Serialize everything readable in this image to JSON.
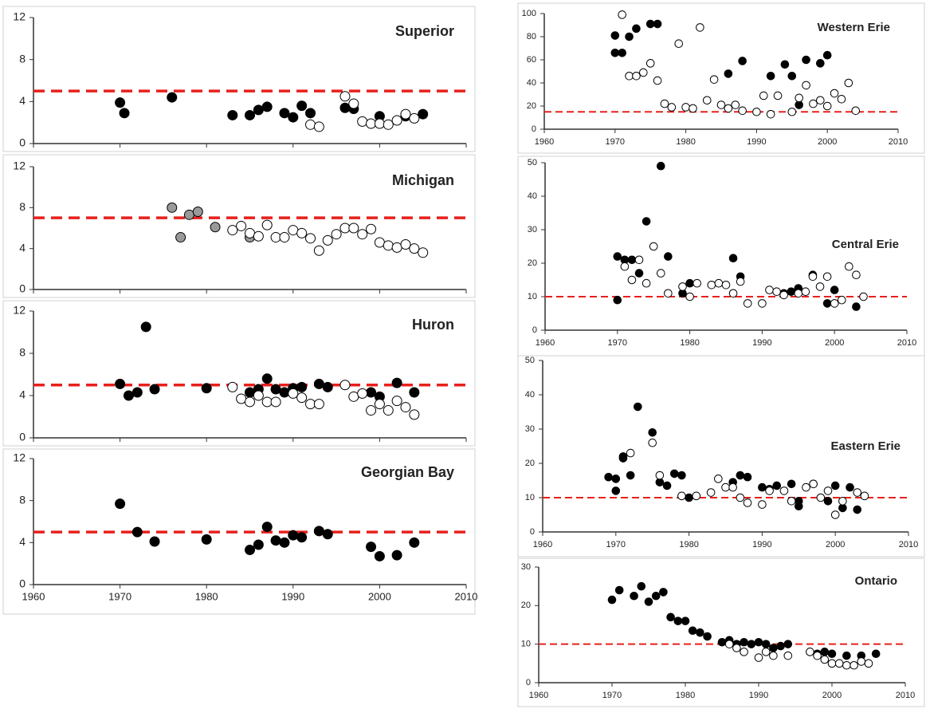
{
  "chart_data": [
    {
      "type": "scatter",
      "title": "Superior",
      "xlim": [
        1960,
        2010
      ],
      "ylim": [
        0,
        12
      ],
      "yticks": [
        0,
        4,
        8,
        12
      ],
      "xticks": [
        1960,
        1970,
        1980,
        1990,
        2000,
        2010
      ],
      "reference_line": {
        "value": 5,
        "color": "#e8201c"
      },
      "series": [
        {
          "color": "#000000",
          "x": [
            1970,
            1970.5,
            1976,
            1983,
            1985,
            1986,
            1987,
            1989,
            1990,
            1991,
            1992,
            1996,
            1997,
            2000,
            2003,
            2005
          ],
          "values": [
            3.9,
            2.9,
            4.4,
            2.7,
            2.7,
            3.2,
            3.5,
            2.9,
            2.5,
            3.6,
            2.9,
            3.4,
            3.3,
            2.6,
            2.6,
            2.8
          ]
        },
        {
          "color": "#ffffff",
          "x": [
            1992,
            1993,
            1996,
            1997,
            1998,
            1999,
            2000,
            2001,
            2002,
            2003,
            2004
          ],
          "values": [
            1.8,
            1.6,
            4.5,
            3.8,
            2.1,
            1.9,
            1.9,
            1.8,
            2.2,
            2.8,
            2.4
          ]
        }
      ]
    },
    {
      "type": "scatter",
      "title": "Michigan",
      "xlim": [
        1960,
        2010
      ],
      "ylim": [
        0,
        12
      ],
      "yticks": [
        0,
        4,
        8,
        12
      ],
      "xticks": [
        1960,
        1970,
        1980,
        1990,
        2000,
        2010
      ],
      "reference_line": {
        "value": 7,
        "color": "#e8201c"
      },
      "series": [
        {
          "color": "#999999",
          "x": [
            1976,
            1977,
            1978,
            1979,
            1981,
            1985
          ],
          "values": [
            8,
            5.1,
            7.3,
            7.6,
            6.1,
            5.1
          ]
        },
        {
          "color": "#ffffff",
          "x": [
            1983,
            1984,
            1985,
            1986,
            1987,
            1988,
            1989,
            1990,
            1991,
            1992,
            1993,
            1994,
            1995,
            1996,
            1997,
            1998,
            1999,
            2000,
            2001,
            2002,
            2003,
            2004,
            2005
          ],
          "values": [
            5.8,
            6.2,
            5.5,
            5.2,
            6.3,
            5.1,
            5.1,
            5.8,
            5.5,
            5.0,
            3.8,
            4.8,
            5.4,
            6.0,
            6.0,
            5.4,
            5.9,
            4.6,
            4.3,
            4.1,
            4.4,
            4.0,
            3.6
          ]
        }
      ]
    },
    {
      "type": "scatter",
      "title": "Huron",
      "xlim": [
        1960,
        2010
      ],
      "ylim": [
        0,
        12
      ],
      "yticks": [
        0,
        4,
        8,
        12
      ],
      "xticks": [
        1960,
        1970,
        1980,
        1990,
        2000,
        2010
      ],
      "reference_line": {
        "value": 5,
        "color": "#e8201c"
      },
      "series": [
        {
          "color": "#000000",
          "x": [
            1970,
            1971,
            1972,
            1973,
            1974,
            1980,
            1985,
            1986,
            1987,
            1988,
            1989,
            1990,
            1991,
            1993,
            1994,
            1999,
            2000,
            2002,
            2004
          ],
          "values": [
            5.1,
            4,
            4.3,
            10.5,
            4.6,
            4.7,
            4.3,
            4.6,
            5.6,
            4.6,
            4.3,
            4.7,
            4.8,
            5.1,
            4.8,
            4.3,
            3.9,
            5.2,
            4.3
          ]
        },
        {
          "color": "#ffffff",
          "x": [
            1983,
            1984,
            1985,
            1986,
            1987,
            1988,
            1990,
            1991,
            1992,
            1993,
            1996,
            1997,
            1998,
            1999,
            2000,
            2001,
            2002,
            2003,
            2004
          ],
          "values": [
            4.8,
            3.7,
            3.4,
            4.0,
            3.4,
            3.4,
            4.2,
            3.8,
            3.2,
            3.2,
            5.0,
            3.9,
            4.2,
            2.6,
            3.2,
            2.6,
            3.5,
            2.9,
            2.2
          ]
        }
      ]
    },
    {
      "type": "scatter",
      "title": "Georgian Bay",
      "xlim": [
        1960,
        2010
      ],
      "ylim": [
        0,
        12
      ],
      "yticks": [
        0,
        4,
        8,
        12
      ],
      "xticks": [
        1960,
        1970,
        1980,
        1990,
        2000,
        2010
      ],
      "reference_line": {
        "value": 5,
        "color": "#e8201c"
      },
      "series": [
        {
          "color": "#000000",
          "x": [
            1970,
            1972,
            1974,
            1980,
            1985,
            1986,
            1987,
            1988,
            1989,
            1990,
            1991,
            1993,
            1994,
            1999,
            2000,
            2002,
            2004
          ],
          "values": [
            7.7,
            5.0,
            4.1,
            4.3,
            3.3,
            3.8,
            5.5,
            4.2,
            4.0,
            4.7,
            4.5,
            5.1,
            4.8,
            3.6,
            2.7,
            2.8,
            4.0
          ]
        }
      ]
    },
    {
      "type": "scatter",
      "title": "Western Erie",
      "xlim": [
        1960,
        2010
      ],
      "ylim": [
        0,
        100
      ],
      "yticks": [
        0,
        20,
        40,
        60,
        80,
        100
      ],
      "xticks": [
        1960,
        1970,
        1980,
        1990,
        2000,
        2010
      ],
      "reference_line": {
        "value": 15,
        "color": "#e8201c"
      },
      "series": [
        {
          "color": "#000000",
          "x": [
            1970,
            1970,
            1971,
            1972,
            1973,
            1975,
            1976,
            1986,
            1988,
            1992,
            1994,
            1995,
            1996,
            1997,
            1999,
            2000
          ],
          "values": [
            81,
            66,
            66,
            80,
            87,
            91,
            91,
            48,
            59,
            46,
            56,
            46,
            21,
            60,
            57,
            64
          ]
        },
        {
          "color": "#ffffff",
          "x": [
            1971,
            1972,
            1973,
            1974,
            1975,
            1976,
            1977,
            1978,
            1979,
            1980,
            1981,
            1982,
            1983,
            1984,
            1985,
            1986,
            1987,
            1988,
            1990,
            1991,
            1992,
            1993,
            1995,
            1996,
            1997,
            1998,
            1999,
            2000,
            2001,
            2002,
            2003,
            2004
          ],
          "values": [
            99,
            46,
            46,
            49,
            57,
            42,
            22,
            19,
            74,
            19,
            18,
            88,
            25,
            43,
            21,
            18,
            21,
            16,
            15,
            29,
            13,
            29,
            15,
            27,
            38,
            22,
            25,
            20,
            31,
            26,
            40,
            16
          ]
        }
      ]
    },
    {
      "type": "scatter",
      "title": "Central Erie",
      "xlim": [
        1960,
        2010
      ],
      "ylim": [
        0,
        50
      ],
      "yticks": [
        0,
        10,
        20,
        30,
        40,
        50
      ],
      "xticks": [
        1960,
        1970,
        1980,
        1990,
        2000,
        2010
      ],
      "reference_line": {
        "value": 10,
        "color": "#e8201c"
      },
      "series": [
        {
          "color": "#000000",
          "x": [
            1970,
            1970,
            1971,
            1972,
            1973,
            1974,
            1976,
            1977,
            1979,
            1980,
            1986,
            1987,
            1993,
            1994,
            1995,
            1997,
            1999,
            2000,
            2003
          ],
          "values": [
            22,
            9,
            21,
            21,
            17,
            32.5,
            49,
            22,
            11,
            14,
            21.5,
            16,
            11,
            11.5,
            12.5,
            16.5,
            8,
            12,
            7
          ]
        },
        {
          "color": "#ffffff",
          "x": [
            1971,
            1972,
            1973,
            1974,
            1975,
            1976,
            1977,
            1979,
            1980,
            1981,
            1983,
            1984,
            1985,
            1986,
            1987,
            1988,
            1990,
            1991,
            1992,
            1993,
            1995,
            1996,
            1997,
            1998,
            1999,
            2000,
            2001,
            2002,
            2003,
            2004
          ],
          "values": [
            19,
            15,
            21,
            14,
            25,
            17,
            11,
            13,
            10,
            14,
            13.5,
            14,
            13.5,
            11,
            14.5,
            8,
            8,
            12,
            11.5,
            10.5,
            11,
            11.5,
            16,
            13,
            16,
            8,
            9,
            19,
            16.5,
            10
          ]
        }
      ]
    },
    {
      "type": "scatter",
      "title": "Eastern Erie",
      "xlim": [
        1960,
        2010
      ],
      "ylim": [
        0,
        50
      ],
      "yticks": [
        0,
        10,
        20,
        30,
        40,
        50
      ],
      "xticks": [
        1960,
        1970,
        1980,
        1990,
        2000,
        2010
      ],
      "reference_line": {
        "value": 10,
        "color": "#e8201c"
      },
      "series": [
        {
          "color": "#000000",
          "x": [
            1969,
            1970,
            1970,
            1971,
            1971,
            1972,
            1973,
            1975,
            1976,
            1977,
            1978,
            1979,
            1980,
            1986,
            1987,
            1988,
            1990,
            1991,
            1992,
            1994,
            1995,
            1995,
            1997,
            1999,
            2000,
            2001,
            2002,
            2003
          ],
          "values": [
            16,
            15.5,
            12,
            22,
            21.5,
            16.5,
            36.5,
            29,
            14.5,
            13.5,
            17,
            16.5,
            10,
            14.5,
            16.5,
            16,
            13,
            12.5,
            13.5,
            14,
            9,
            7.5,
            14,
            9,
            13.5,
            7,
            13,
            6.5
          ]
        },
        {
          "color": "#ffffff",
          "x": [
            1972,
            1975,
            1976,
            1979,
            1981,
            1983,
            1984,
            1985,
            1986,
            1987,
            1988,
            1990,
            1991,
            1993,
            1994,
            1996,
            1997,
            1998,
            1999,
            2000,
            2001,
            2003,
            2004
          ],
          "values": [
            23,
            26,
            16.5,
            10.5,
            10.5,
            11.5,
            15.5,
            13,
            13,
            10,
            8.5,
            8,
            12,
            12,
            9,
            13,
            14,
            10,
            12,
            5,
            9,
            11.5,
            10.5
          ]
        }
      ]
    },
    {
      "type": "scatter",
      "title": "Ontario",
      "xlim": [
        1960,
        2010
      ],
      "ylim": [
        0,
        30
      ],
      "yticks": [
        0,
        10,
        20,
        30
      ],
      "xticks": [
        1960,
        1970,
        1980,
        1990,
        2000,
        2010
      ],
      "reference_line": {
        "value": 10,
        "color": "#e8201c"
      },
      "series": [
        {
          "color": "#000000",
          "x": [
            1970,
            1971,
            1973,
            1974,
            1975,
            1976,
            1977,
            1978,
            1979,
            1980,
            1981,
            1982,
            1983,
            1985,
            1986,
            1987,
            1988,
            1989,
            1990,
            1991,
            1992,
            1993,
            1994,
            1998,
            1999,
            2000,
            2002,
            2004,
            2006
          ],
          "values": [
            21.5,
            24,
            22.5,
            25,
            21,
            22.5,
            23.5,
            17,
            16,
            16,
            13.5,
            13,
            12,
            10.5,
            11,
            10,
            10.5,
            10,
            10.5,
            10,
            9,
            9.5,
            10,
            7.5,
            8,
            7.5,
            7,
            7,
            7.5
          ]
        },
        {
          "color": "#ffffff",
          "x": [
            1986,
            1987,
            1988,
            1990,
            1991,
            1992,
            1994,
            1997,
            1998,
            1999,
            2000,
            2001,
            2002,
            2003,
            2004,
            2005
          ],
          "values": [
            10,
            9,
            8,
            6.5,
            8,
            7,
            7,
            8,
            7,
            6,
            5,
            5,
            4.5,
            4.5,
            5.5,
            5
          ]
        }
      ]
    }
  ]
}
